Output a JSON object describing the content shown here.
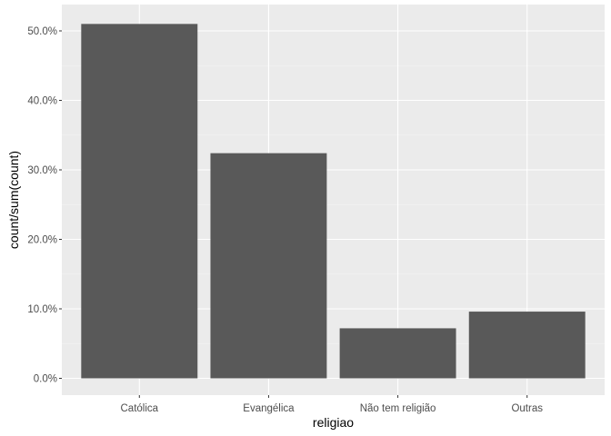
{
  "chart_data": {
    "type": "bar",
    "title": "",
    "xlabel": "religiao",
    "ylabel": "count/sum(count)",
    "categories": [
      "Católica",
      "Evangélica",
      "Não tem religião",
      "Outras"
    ],
    "values": [
      0.51,
      0.324,
      0.072,
      0.096
    ],
    "ylim": [
      0,
      0.535
    ],
    "yticks": [
      0.0,
      0.1,
      0.2,
      0.3,
      0.4,
      0.5
    ],
    "ytick_labels": [
      "0.0%",
      "10.0%",
      "20.0%",
      "30.0%",
      "40.0%",
      "50.0%"
    ],
    "grid": true,
    "legend": "none",
    "colors": {
      "panel_bg": "#ebebeb",
      "grid_major": "#ffffff",
      "grid_minor": "#f5f5f5",
      "bar_fill": "#595959",
      "tick_text": "#4d4d4d",
      "tick_mark": "#333333",
      "title_text": "#000000"
    }
  }
}
